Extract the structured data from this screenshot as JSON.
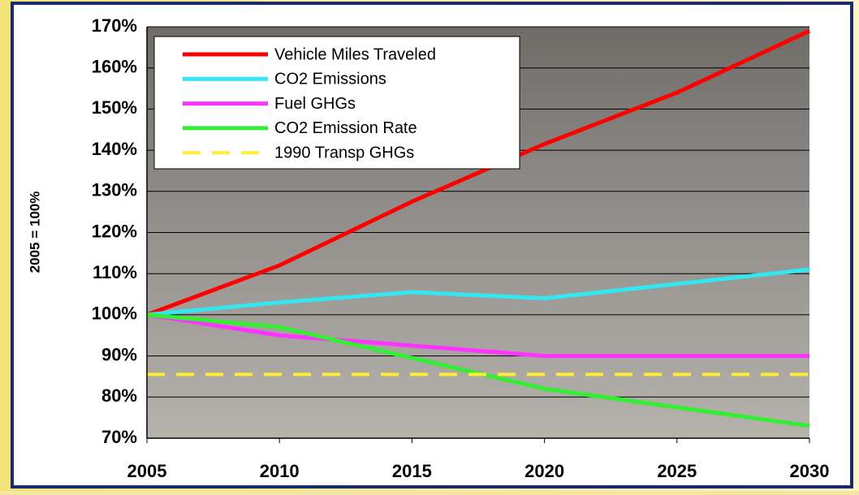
{
  "chart_data": {
    "type": "line",
    "y_axis_label": "2005 = 100%",
    "x": [
      2005,
      2010,
      2015,
      2020,
      2025,
      2030
    ],
    "series": [
      {
        "name": "Vehicle Miles Traveled",
        "color": "#ff0000",
        "values": [
          100,
          112,
          127.5,
          141.5,
          154,
          169
        ]
      },
      {
        "name": "CO2 Emissions",
        "color": "#33e6f2",
        "values": [
          100,
          103,
          105.5,
          104,
          107.5,
          111
        ]
      },
      {
        "name": "Fuel GHGs",
        "color": "#ff33ff",
        "values": [
          100,
          95,
          92.5,
          90,
          90,
          90
        ]
      },
      {
        "name": "CO2 Emission Rate",
        "color": "#33ee33",
        "values": [
          100,
          97,
          89.5,
          82,
          77.5,
          73
        ]
      },
      {
        "name": "1990 Transp GHGs",
        "color": "#ffee33",
        "dashed": true,
        "values": [
          85.5,
          85.5,
          85.5,
          85.5,
          85.5,
          85.5
        ]
      }
    ],
    "xlim": [
      2005,
      2030
    ],
    "xticks": [
      2005,
      2010,
      2015,
      2020,
      2025,
      2030
    ],
    "ylim": [
      70,
      170
    ],
    "yticks": [
      {
        "value": 70,
        "label": "70%"
      },
      {
        "value": 80,
        "label": "80%"
      },
      {
        "value": 90,
        "label": "90%"
      },
      {
        "value": 100,
        "label": "100%"
      },
      {
        "value": 110,
        "label": "110%"
      },
      {
        "value": 120,
        "label": "120%"
      },
      {
        "value": 130,
        "label": "130%"
      },
      {
        "value": 140,
        "label": "140%"
      },
      {
        "value": 150,
        "label": "150%"
      },
      {
        "value": 160,
        "label": "160%"
      },
      {
        "value": 170,
        "label": "170%"
      }
    ],
    "grid": true,
    "legend": "top-left"
  }
}
